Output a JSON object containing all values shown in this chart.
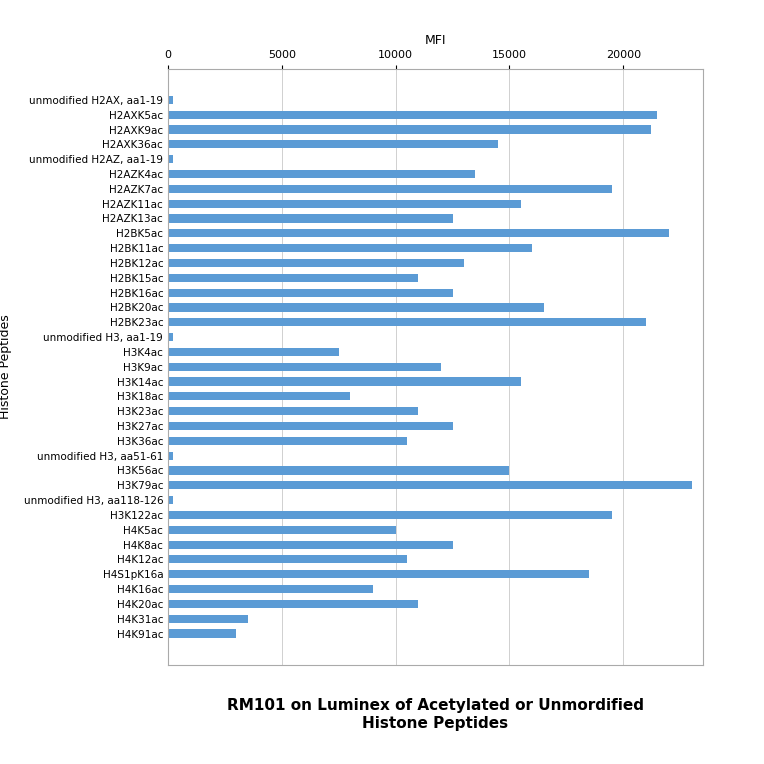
{
  "categories": [
    "unmodified H2AX, aa1-19",
    "H2AXK5ac",
    "H2AXK9ac",
    "H2AXK36ac",
    "unmodified H2AZ, aa1-19",
    "H2AZK4ac",
    "H2AZK7ac",
    "H2AZK11ac",
    "H2AZK13ac",
    "H2BK5ac",
    "H2BK11ac",
    "H2BK12ac",
    "H2BK15ac",
    "H2BK16ac",
    "H2BK20ac",
    "H2BK23ac",
    "unmodified H3, aa1-19",
    "H3K4ac",
    "H3K9ac",
    "H3K14ac",
    "H3K18ac",
    "H3K23ac",
    "H3K27ac",
    "H3K36ac",
    "unmodified H3, aa51-61",
    "H3K56ac",
    "H3K79ac",
    "unmodified H3, aa118-126",
    "H3K122ac",
    "H4K5ac",
    "H4K8ac",
    "H4K12ac",
    "H4S1pK16a",
    "H4K16ac",
    "H4K20ac",
    "H4K31ac",
    "H4K91ac"
  ],
  "values": [
    200,
    21500,
    21200,
    14500,
    200,
    13500,
    19500,
    15500,
    12500,
    22000,
    16000,
    13000,
    11000,
    12500,
    16500,
    21000,
    200,
    7500,
    12000,
    15500,
    8000,
    11000,
    12500,
    10500,
    200,
    15000,
    23000,
    200,
    19500,
    10000,
    12500,
    10500,
    18500,
    9000,
    11000,
    3500,
    3000
  ],
  "bar_color": "#5B9BD5",
  "background_color": "#ffffff",
  "title_line1": "RM101 on Luminex of Acetylated or Unmordified",
  "title_line2": "Histone Peptides",
  "xlabel": "MFI",
  "ylabel": "Histone Peptides",
  "xlim": [
    0,
    23500
  ],
  "xticks": [
    0,
    5000,
    10000,
    15000,
    20000
  ],
  "title_fontsize": 11,
  "axis_fontsize": 9,
  "tick_fontsize": 8,
  "label_fontsize": 7.5,
  "bar_height": 0.55
}
